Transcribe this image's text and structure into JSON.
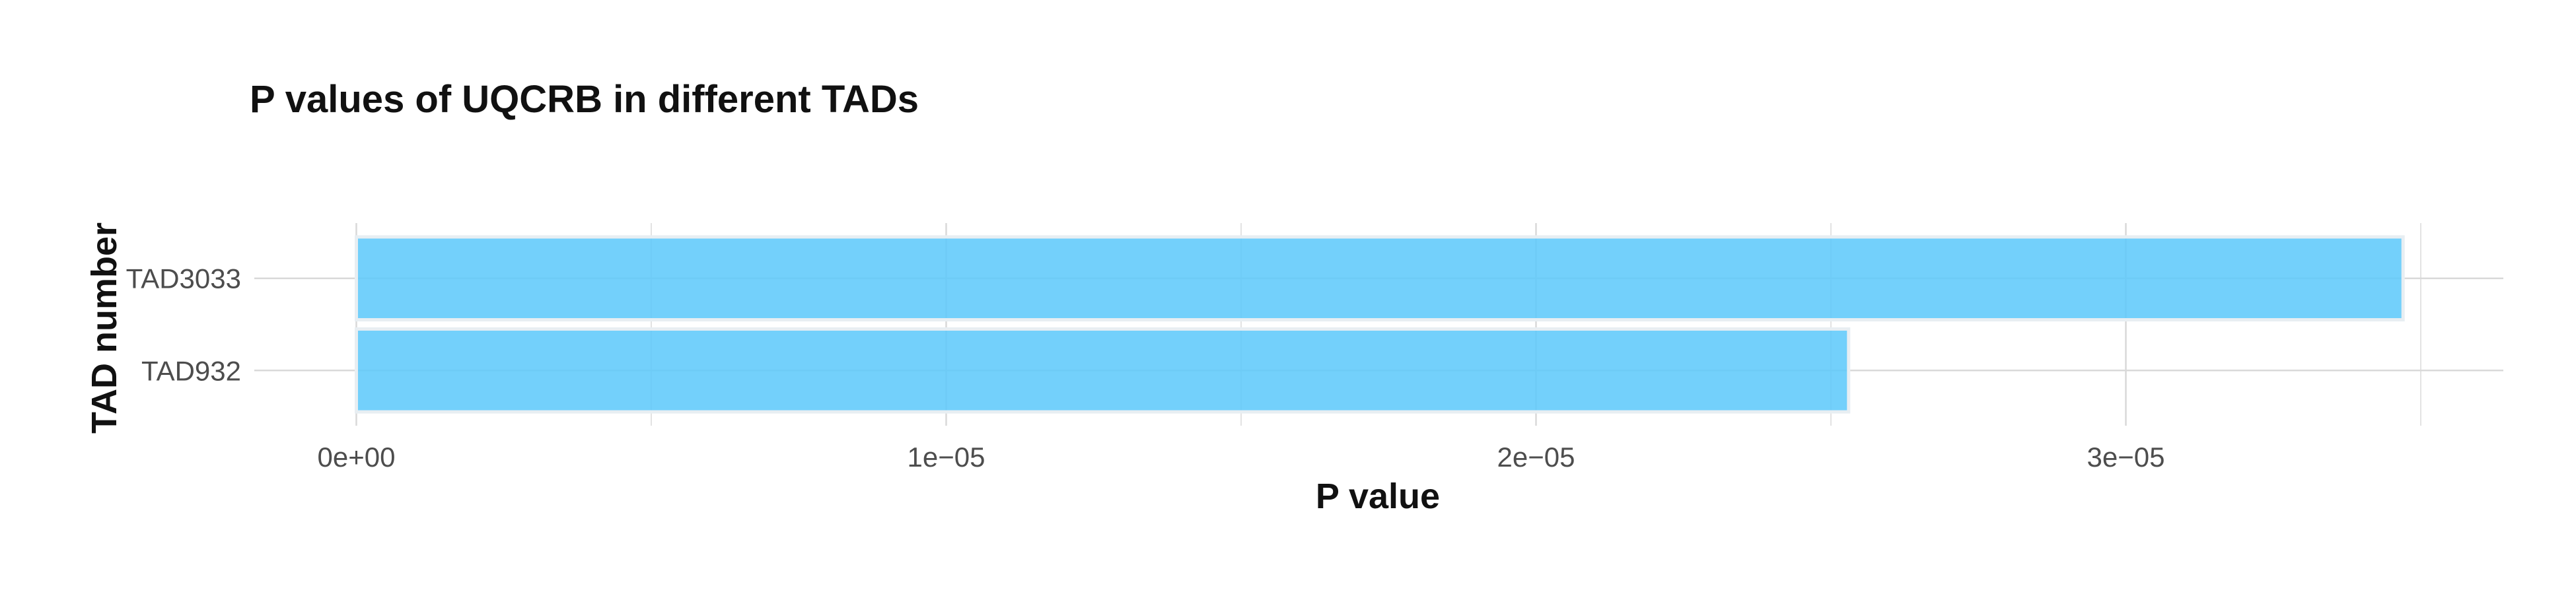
{
  "chart_data": {
    "type": "bar",
    "orientation": "horizontal",
    "title": "P values of UQCRB in different TADs",
    "xlabel": "P value",
    "ylabel": "TAD number",
    "categories": [
      "TAD932",
      "TAD3033"
    ],
    "values": [
      2.53e-05,
      3.47e-05
    ],
    "xlim": [
      -1.73e-06,
      3.64e-05
    ],
    "x_ticks": [
      0,
      1e-05,
      2e-05,
      3e-05
    ],
    "x_tick_labels": [
      "0e+00",
      "1e−05",
      "2e−05",
      "3e−05"
    ],
    "grid": true,
    "legend": "none",
    "bar_color": "#5bc8fa",
    "bar_outline_color": "#e8eef2",
    "grid_color": "#d9d9d9"
  }
}
